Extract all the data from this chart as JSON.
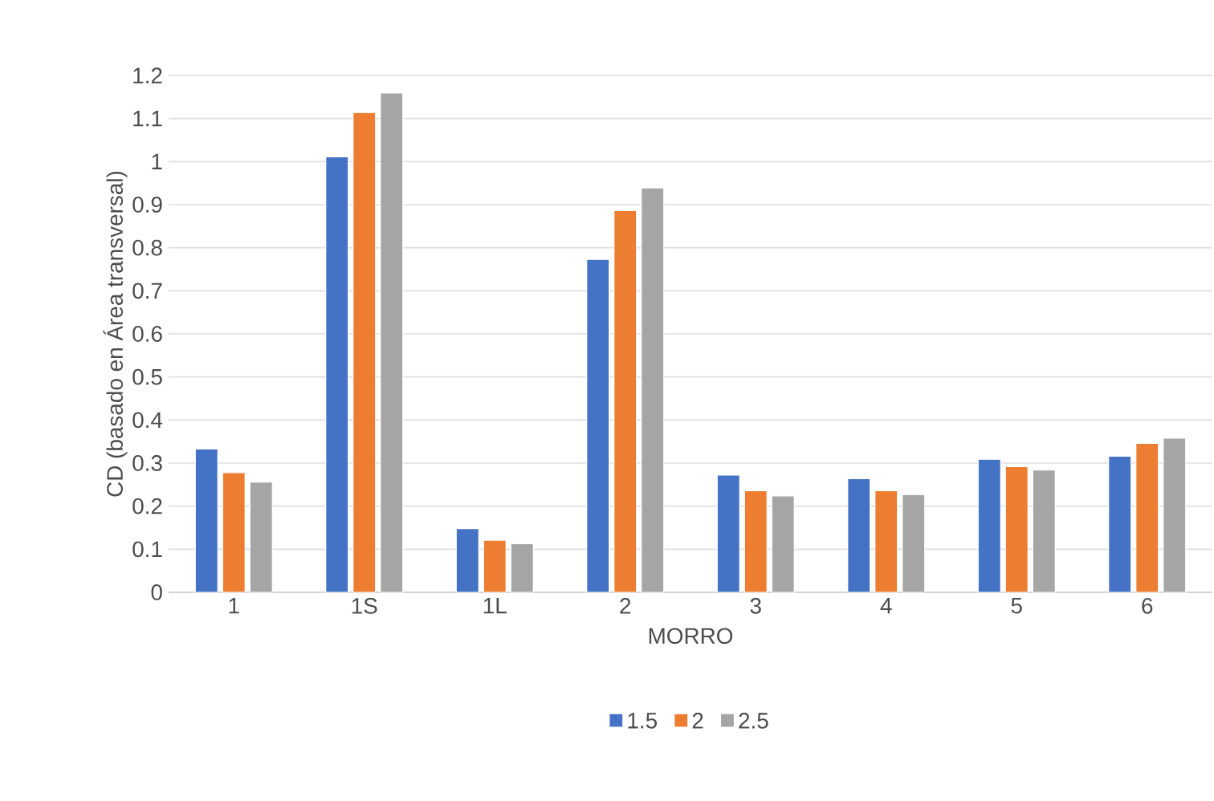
{
  "chart_data": {
    "type": "bar",
    "xlabel": "MORRO",
    "ylabel": "CD (basado en Área transversal)",
    "categories": [
      "1",
      "1S",
      "1L",
      "2",
      "3",
      "4",
      "5",
      "6"
    ],
    "series": [
      {
        "name": "1.5",
        "color": "#4472c4",
        "values": [
          0.333,
          1.011,
          0.148,
          0.773,
          0.272,
          0.264,
          0.309,
          0.316
        ]
      },
      {
        "name": "2",
        "color": "#ed7d31",
        "values": [
          0.278,
          1.114,
          0.121,
          0.886,
          0.236,
          0.236,
          0.292,
          0.346
        ]
      },
      {
        "name": "2.5",
        "color": "#a5a5a5",
        "values": [
          0.256,
          1.159,
          0.113,
          0.939,
          0.224,
          0.227,
          0.284,
          0.358
        ]
      }
    ],
    "ylim": [
      0,
      1.2
    ],
    "yticks": [
      0,
      0.1,
      0.2,
      0.3,
      0.4,
      0.5,
      0.6,
      0.7,
      0.8,
      0.9,
      1,
      1.1,
      1.2
    ],
    "grid": "y",
    "legend": "bottom"
  }
}
